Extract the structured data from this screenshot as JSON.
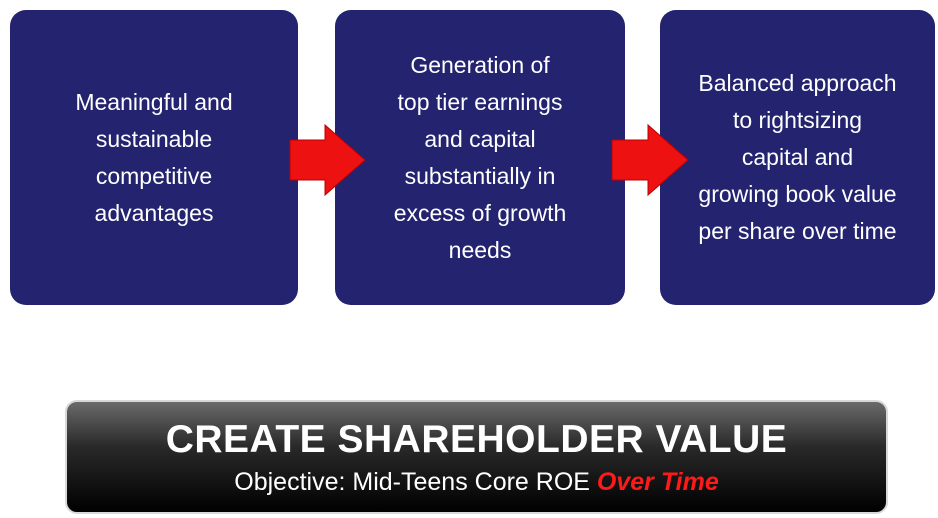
{
  "steps": [
    {
      "lines": [
        "Meaningful and",
        "sustainable",
        "competitive",
        "advantages"
      ]
    },
    {
      "lines": [
        "Generation of",
        "top tier earnings",
        "and capital",
        "substantially in",
        "excess of growth",
        "needs"
      ]
    },
    {
      "lines": [
        "Balanced approach",
        "to rightsizing",
        "capital and",
        "growing book value",
        "per share over time"
      ]
    }
  ],
  "banner": {
    "title": "CREATE SHAREHOLDER VALUE",
    "subtitle": "Objective: Mid-Teens Core ROE",
    "emphasis": "Over Time"
  }
}
